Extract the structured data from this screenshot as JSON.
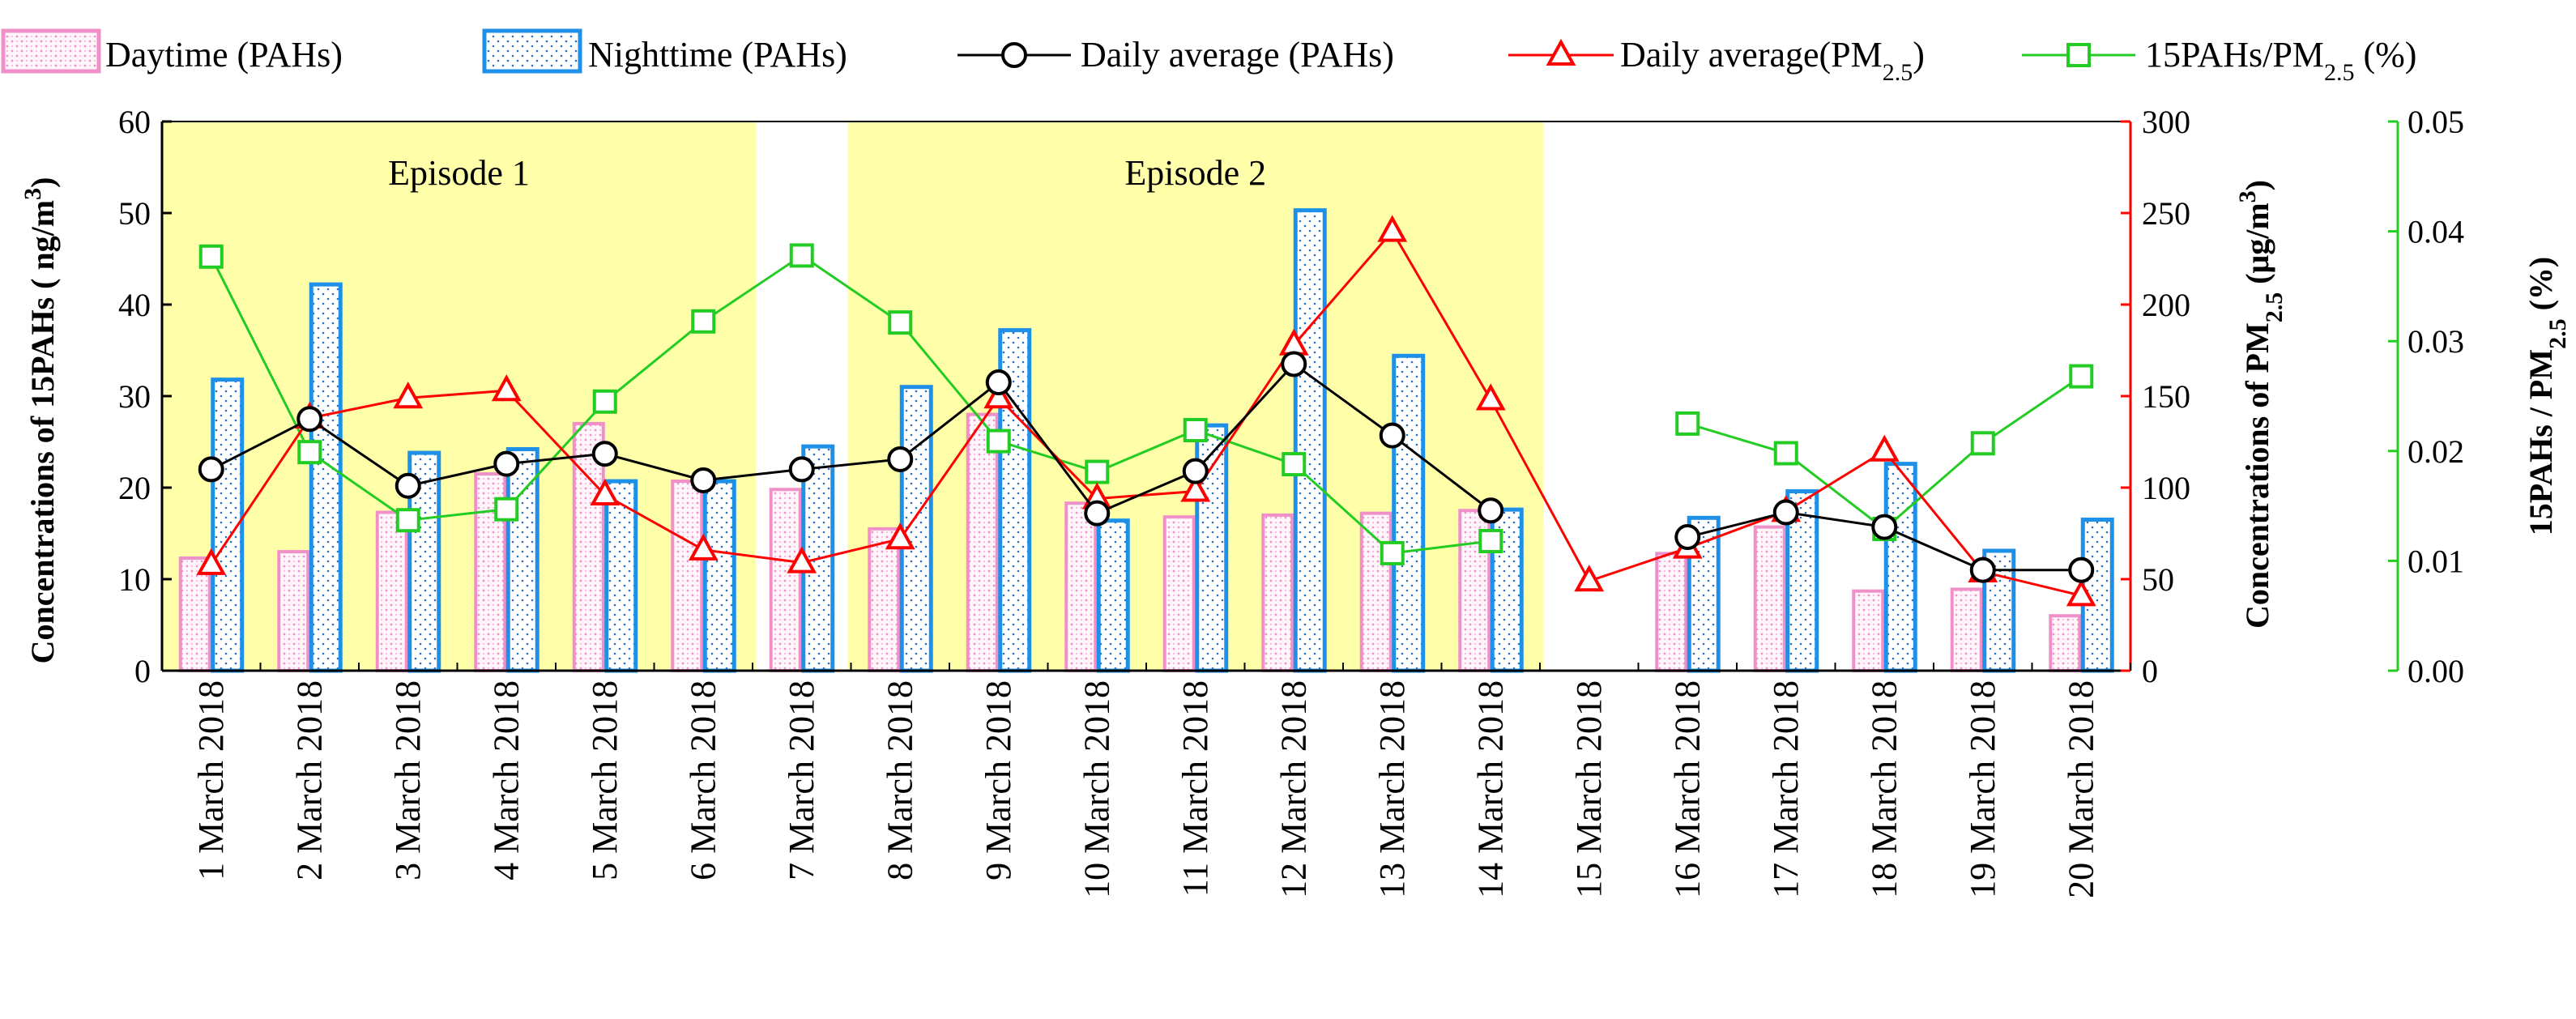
{
  "chart_data": {
    "type": "bar+line",
    "legend": {
      "placement": "top",
      "items": [
        {
          "key": "day",
          "label": "Daytime (PAHs)"
        },
        {
          "key": "night",
          "label": "Nighttime (PAHs)"
        },
        {
          "key": "avg_pahs",
          "label": "Daily average (PAHs)"
        },
        {
          "key": "avg_pm",
          "label_main": "Daily average(PM",
          "label_sub": "2.5",
          "label_tail": ")"
        },
        {
          "key": "ratio",
          "label_main": "15PAHs/PM",
          "label_sub": "2.5",
          "label_tail": " (%)"
        }
      ]
    },
    "episodes": [
      {
        "label": "Episode 1",
        "from": 0,
        "to": 5
      },
      {
        "label": "Episode 2",
        "from": 7,
        "to": 13
      }
    ],
    "categories": [
      "1 March 2018",
      "2 March 2018",
      "3 March 2018",
      "4 March 2018",
      "5 March 2018",
      "6 March 2018",
      "7 March 2018",
      "8 March 2018",
      "9 March 2018",
      "10 March 2018",
      "11 March 2018",
      "12 March 2018",
      "13 March 2018",
      "14 March 2018",
      "15 March 2018",
      "16 March 2018",
      "17 March 2018",
      "18 March 2018",
      "19 March 2018",
      "20 March 2018"
    ],
    "axes": {
      "left": {
        "label_main": "Concentrations of 15PAHs  ( ng/m",
        "label_sup": "3",
        "label_tail": ")",
        "ylim": [
          0,
          60
        ],
        "ticks": [
          "0",
          "10",
          "20",
          "30",
          "40",
          "50",
          "60"
        ],
        "color": "#000000"
      },
      "right1": {
        "label_main": "Concentrations of PM",
        "label_sub": "2.5",
        "label_mid": " (μg/m",
        "label_sup": "3",
        "label_tail": ")",
        "ylim": [
          0,
          300
        ],
        "ticks": [
          "0",
          "50",
          "100",
          "150",
          "200",
          "250",
          "300"
        ],
        "color": "#ff0000"
      },
      "right2": {
        "label_main": "15PAHs / PM",
        "label_sub": "2.5",
        "label_tail": " (%)",
        "ylim": [
          0,
          0.05
        ],
        "ticks": [
          "0.00",
          "0.01",
          "0.02",
          "0.03",
          "0.04",
          "0.05"
        ],
        "color": "#00cc00"
      }
    },
    "series": [
      {
        "key": "day",
        "name": "Daytime (PAHs)",
        "axis": "left",
        "values": [
          12.3,
          13,
          17.3,
          21.5,
          27,
          20.7,
          19.8,
          15.5,
          28,
          18.3,
          16.8,
          17,
          17.2,
          17.5,
          null,
          12.8,
          15.7,
          8.7,
          8.9,
          6
        ]
      },
      {
        "key": "night",
        "name": "Nighttime (PAHs)",
        "axis": "left",
        "values": [
          31.8,
          42.2,
          23.8,
          24.2,
          20.7,
          20.7,
          24.5,
          31,
          37.2,
          16.4,
          26.8,
          50.3,
          34.4,
          17.6,
          null,
          16.7,
          19.6,
          22.6,
          13.1,
          16.5
        ]
      },
      {
        "key": "avg_pahs",
        "name": "Daily average (PAHs)",
        "axis": "left",
        "values": [
          22,
          27.5,
          20.2,
          22.6,
          23.7,
          20.8,
          22,
          23.1,
          31.5,
          17.2,
          21.8,
          33.5,
          25.7,
          17.5,
          null,
          14.6,
          17.3,
          15.7,
          11,
          11
        ]
      },
      {
        "key": "avg_pm",
        "name": "Daily average(PM2.5)",
        "axis": "right1",
        "values": [
          58,
          138,
          149,
          153,
          96,
          66,
          59,
          72,
          149,
          94,
          98,
          178,
          240,
          148,
          49,
          67,
          87,
          120,
          54,
          41
        ]
      },
      {
        "key": "ratio",
        "name": "15PAHs/PM2.5 (%)",
        "axis": "right2",
        "values": [
          0.0377,
          0.0199,
          0.0137,
          0.0147,
          0.0245,
          0.0318,
          0.0378,
          0.0317,
          0.0209,
          0.0181,
          0.0219,
          0.0188,
          0.0107,
          0.0118,
          null,
          0.0225,
          0.0198,
          0.0129,
          0.0207,
          0.0268
        ]
      }
    ],
    "colors": {
      "day": "#f090c8",
      "night": "#1e90e8",
      "avg_pahs": "#000000",
      "avg_pm": "#ff0000",
      "ratio": "#22cc22",
      "episode_bg": "#ffffaa"
    }
  }
}
